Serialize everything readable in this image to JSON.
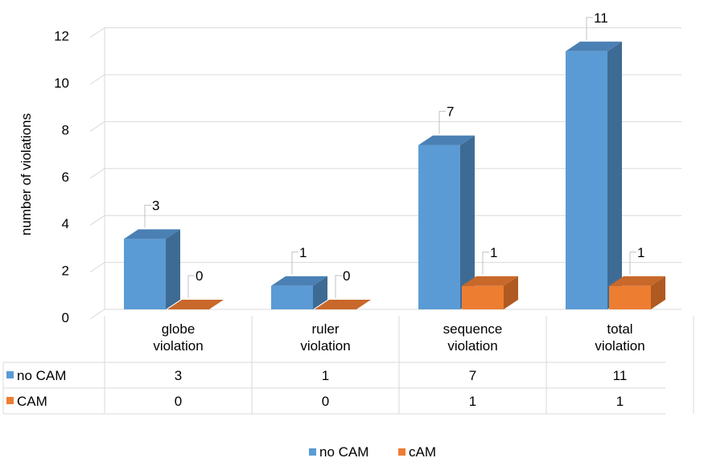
{
  "chart_data": {
    "type": "bar",
    "ylabel": "number of violations",
    "ylim": [
      0,
      12
    ],
    "yticks": [
      0,
      2,
      4,
      6,
      8,
      10,
      12
    ],
    "categories": [
      [
        "globe",
        "violation"
      ],
      [
        "ruler",
        "violation"
      ],
      [
        "sequence",
        "violation"
      ],
      [
        "total",
        "violation"
      ]
    ],
    "series": [
      {
        "name": "no CAM",
        "values": [
          3,
          1,
          7,
          11
        ]
      },
      {
        "name": "CAM",
        "values": [
          0,
          0,
          1,
          1
        ]
      }
    ],
    "legend_labels": [
      "no CAM",
      "cAM"
    ],
    "legend_position": "bottom",
    "data_table": true,
    "grid": true,
    "colors": {
      "no_cam_front": "#5b9bd5",
      "no_cam_side": "#3e6b94",
      "no_cam_top": "#4a80b4",
      "cam_front": "#ed7d31",
      "cam_side": "#b05a21",
      "cam_top": "#c8682a"
    }
  }
}
